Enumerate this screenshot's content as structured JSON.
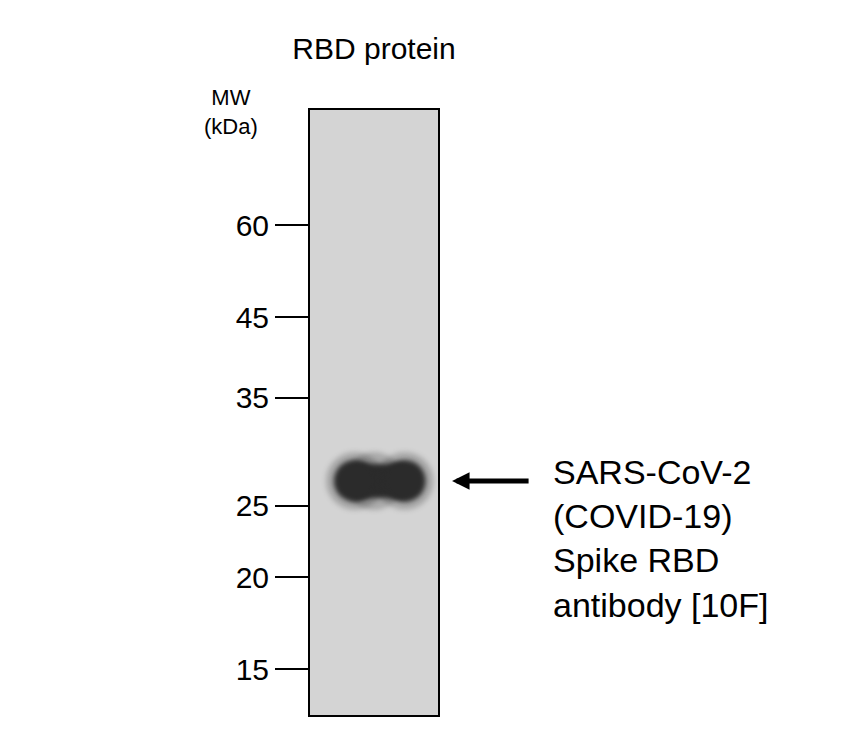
{
  "chart_data": {
    "type": "western_blot",
    "title": "RBD protein",
    "y_label": [
      "MW",
      "(kDa)"
    ],
    "log": "y",
    "ylim": [
      13,
      86
    ],
    "yticks": [
      15,
      20,
      25,
      35,
      45,
      60
    ],
    "tick_labels": "y",
    "grid": false,
    "color": "#2b2b2b",
    "bands": [
      {
        "mw": 27,
        "label": [
          "SARS-CoV-2",
          "(COVID-19)",
          "Spike RBD",
          "antibody [10F]"
        ]
      }
    ]
  }
}
